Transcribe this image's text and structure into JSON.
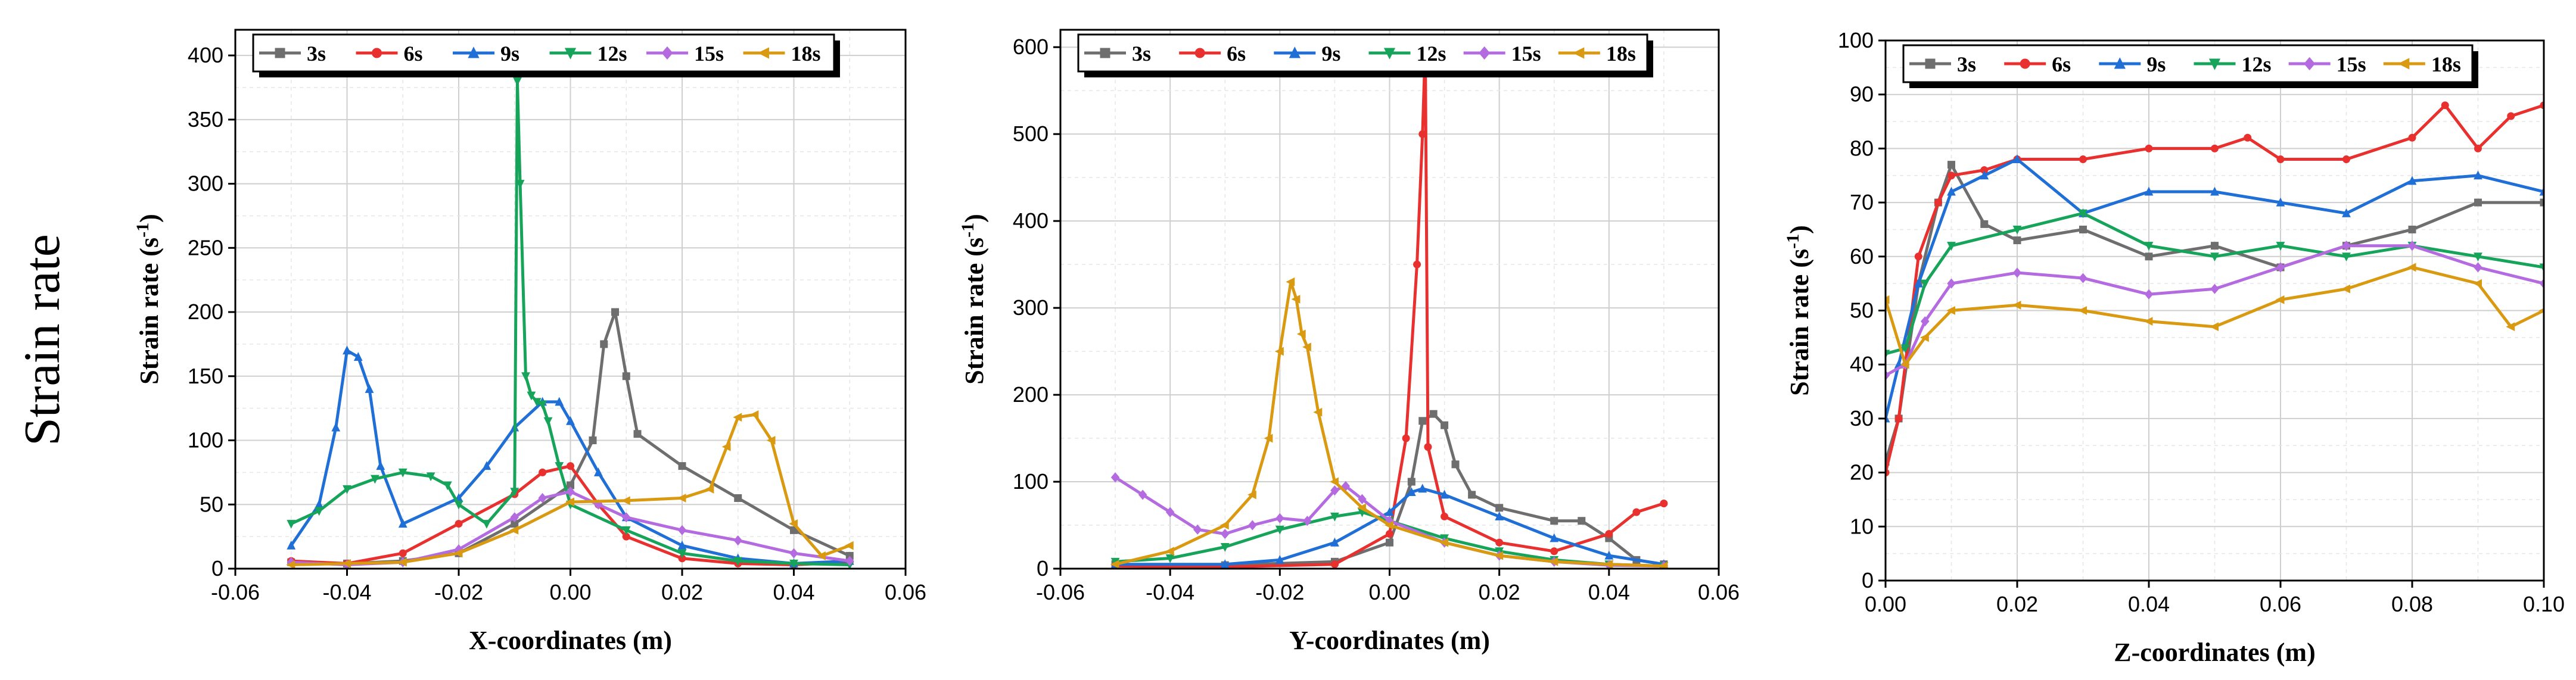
{
  "row_label": "Strain rate",
  "chart_data": [
    {
      "type": "line",
      "xlabel": "X-coordinates (m)",
      "ylabel": "Strain rate (s",
      "ylabel_sup": "-1",
      "ylabel_end": ")",
      "xlim": [
        -0.06,
        0.06
      ],
      "ylim": [
        0,
        420
      ],
      "xticks": [
        -0.06,
        -0.04,
        -0.02,
        0.0,
        0.02,
        0.04,
        0.06
      ],
      "xtick_labels": [
        "-0.06",
        "-0.04",
        "-0.02",
        "0.00",
        "0.02",
        "0.04",
        "0.06"
      ],
      "yticks": [
        0,
        50,
        100,
        150,
        200,
        250,
        300,
        350,
        400
      ],
      "ytick_labels": [
        "0",
        "50",
        "100",
        "150",
        "200",
        "250",
        "300",
        "350",
        "400"
      ],
      "grid": true,
      "legend_position": "top",
      "series": [
        {
          "name": "3s",
          "color": "#6e6e6e",
          "marker": "square",
          "x": [
            -0.05,
            -0.04,
            -0.03,
            -0.02,
            -0.01,
            0.0,
            0.004,
            0.006,
            0.008,
            0.01,
            0.012,
            0.02,
            0.03,
            0.04,
            0.05
          ],
          "y": [
            5,
            4,
            6,
            12,
            35,
            65,
            100,
            175,
            200,
            150,
            105,
            80,
            55,
            30,
            10
          ]
        },
        {
          "name": "6s",
          "color": "#e8312f",
          "marker": "circle",
          "x": [
            -0.05,
            -0.04,
            -0.03,
            -0.02,
            -0.01,
            -0.005,
            0.0,
            0.005,
            0.01,
            0.02,
            0.03,
            0.04,
            0.05
          ],
          "y": [
            6,
            4,
            12,
            35,
            58,
            75,
            80,
            50,
            25,
            8,
            4,
            3,
            5
          ]
        },
        {
          "name": "9s",
          "color": "#1f6fd6",
          "marker": "triangle-up",
          "x": [
            -0.05,
            -0.045,
            -0.042,
            -0.04,
            -0.038,
            -0.036,
            -0.034,
            -0.03,
            -0.02,
            -0.015,
            -0.01,
            -0.005,
            -0.002,
            0.0,
            0.005,
            0.01,
            0.02,
            0.03,
            0.04,
            0.05
          ],
          "y": [
            18,
            50,
            110,
            170,
            165,
            140,
            80,
            35,
            55,
            80,
            110,
            130,
            130,
            115,
            75,
            40,
            18,
            8,
            4,
            6
          ]
        },
        {
          "name": "12s",
          "color": "#16a35a",
          "marker": "triangle-down",
          "x": [
            -0.05,
            -0.045,
            -0.04,
            -0.035,
            -0.03,
            -0.025,
            -0.022,
            -0.02,
            -0.015,
            -0.01,
            -0.0095,
            -0.009,
            -0.008,
            -0.007,
            -0.006,
            -0.005,
            -0.004,
            -0.002,
            0.0,
            0.01,
            0.02,
            0.03,
            0.04,
            0.05
          ],
          "y": [
            35,
            45,
            62,
            70,
            75,
            72,
            65,
            50,
            35,
            60,
            380,
            300,
            150,
            135,
            130,
            128,
            115,
            80,
            50,
            30,
            12,
            6,
            4,
            3
          ]
        },
        {
          "name": "15s",
          "color": "#b46be0",
          "marker": "diamond",
          "x": [
            -0.05,
            -0.04,
            -0.03,
            -0.02,
            -0.01,
            -0.005,
            0.0,
            0.005,
            0.01,
            0.02,
            0.03,
            0.04,
            0.05
          ],
          "y": [
            5,
            3,
            5,
            15,
            40,
            55,
            60,
            50,
            40,
            30,
            22,
            12,
            6
          ]
        },
        {
          "name": "18s",
          "color": "#d99a12",
          "marker": "triangle-left",
          "x": [
            -0.05,
            -0.04,
            -0.03,
            -0.02,
            -0.01,
            0.0,
            0.01,
            0.02,
            0.025,
            0.028,
            0.03,
            0.033,
            0.036,
            0.04,
            0.045,
            0.05
          ],
          "y": [
            3,
            4,
            5,
            12,
            30,
            52,
            53,
            55,
            62,
            95,
            118,
            120,
            100,
            35,
            10,
            18
          ]
        }
      ]
    },
    {
      "type": "line",
      "xlabel": "Y-coordinates (m)",
      "ylabel": "Strain rate (s",
      "ylabel_sup": "-1",
      "ylabel_end": ")",
      "xlim": [
        -0.06,
        0.06
      ],
      "ylim": [
        0,
        620
      ],
      "xticks": [
        -0.06,
        -0.04,
        -0.02,
        0.0,
        0.02,
        0.04,
        0.06
      ],
      "xtick_labels": [
        "-0.06",
        "-0.04",
        "-0.02",
        "0.00",
        "0.02",
        "0.04",
        "0.06"
      ],
      "yticks": [
        0,
        100,
        200,
        300,
        400,
        500,
        600
      ],
      "ytick_labels": [
        "0",
        "100",
        "200",
        "300",
        "400",
        "500",
        "600"
      ],
      "grid": true,
      "legend_position": "top",
      "series": [
        {
          "name": "3s",
          "color": "#6e6e6e",
          "marker": "square",
          "x": [
            -0.05,
            -0.03,
            -0.01,
            0.0,
            0.004,
            0.006,
            0.008,
            0.01,
            0.012,
            0.015,
            0.02,
            0.03,
            0.035,
            0.04,
            0.045,
            0.05
          ],
          "y": [
            5,
            4,
            8,
            30,
            100,
            170,
            178,
            165,
            120,
            85,
            70,
            55,
            55,
            35,
            10,
            5
          ]
        },
        {
          "name": "6s",
          "color": "#e8312f",
          "marker": "circle",
          "x": [
            -0.05,
            -0.03,
            -0.01,
            0.0,
            0.003,
            0.005,
            0.006,
            0.0065,
            0.007,
            0.01,
            0.02,
            0.03,
            0.04,
            0.045,
            0.05
          ],
          "y": [
            3,
            2,
            5,
            40,
            150,
            350,
            500,
            600,
            140,
            60,
            30,
            20,
            40,
            65,
            75
          ]
        },
        {
          "name": "9s",
          "color": "#1f6fd6",
          "marker": "triangle-up",
          "x": [
            -0.05,
            -0.03,
            -0.02,
            -0.01,
            0.0,
            0.004,
            0.006,
            0.01,
            0.02,
            0.03,
            0.04,
            0.05
          ],
          "y": [
            5,
            5,
            10,
            30,
            65,
            88,
            92,
            85,
            60,
            35,
            15,
            5
          ]
        },
        {
          "name": "12s",
          "color": "#16a35a",
          "marker": "triangle-down",
          "x": [
            -0.05,
            -0.04,
            -0.03,
            -0.02,
            -0.01,
            -0.005,
            0.0,
            0.01,
            0.02,
            0.03,
            0.04,
            0.05
          ],
          "y": [
            8,
            12,
            25,
            45,
            60,
            65,
            55,
            35,
            20,
            10,
            5,
            3
          ]
        },
        {
          "name": "15s",
          "color": "#b46be0",
          "marker": "diamond",
          "x": [
            -0.05,
            -0.045,
            -0.04,
            -0.035,
            -0.03,
            -0.025,
            -0.02,
            -0.015,
            -0.01,
            -0.008,
            -0.005,
            0.0,
            0.01,
            0.02,
            0.03,
            0.04,
            0.05
          ],
          "y": [
            105,
            85,
            65,
            45,
            40,
            50,
            58,
            55,
            90,
            95,
            80,
            55,
            30,
            15,
            8,
            4,
            3
          ]
        },
        {
          "name": "18s",
          "color": "#d99a12",
          "marker": "triangle-left",
          "x": [
            -0.05,
            -0.04,
            -0.03,
            -0.025,
            -0.022,
            -0.02,
            -0.018,
            -0.017,
            -0.016,
            -0.015,
            -0.013,
            -0.01,
            -0.005,
            0.0,
            0.01,
            0.02,
            0.03,
            0.04,
            0.05
          ],
          "y": [
            5,
            20,
            50,
            85,
            150,
            250,
            330,
            310,
            270,
            255,
            180,
            100,
            70,
            50,
            30,
            15,
            8,
            5,
            3
          ]
        }
      ]
    },
    {
      "type": "line",
      "xlabel": "Z-coordinates (m)",
      "ylabel": "Strain rate (s",
      "ylabel_sup": "-1",
      "ylabel_end": ")",
      "xlim": [
        0.0,
        0.1
      ],
      "ylim": [
        0,
        100
      ],
      "xticks": [
        0.0,
        0.02,
        0.04,
        0.06,
        0.08,
        0.1
      ],
      "xtick_labels": [
        "0.00",
        "0.02",
        "0.04",
        "0.06",
        "0.08",
        "0.10"
      ],
      "yticks": [
        0,
        10,
        20,
        30,
        40,
        50,
        60,
        70,
        80,
        90,
        100
      ],
      "ytick_labels": [
        "0",
        "10",
        "20",
        "30",
        "40",
        "50",
        "60",
        "70",
        "80",
        "90",
        "100"
      ],
      "grid": true,
      "legend_position": "top",
      "series": [
        {
          "name": "3s",
          "color": "#6e6e6e",
          "marker": "square",
          "x": [
            0.0,
            0.002,
            0.005,
            0.008,
            0.01,
            0.015,
            0.02,
            0.03,
            0.04,
            0.05,
            0.06,
            0.07,
            0.08,
            0.09,
            0.1
          ],
          "y": [
            22,
            30,
            55,
            70,
            77,
            66,
            63,
            65,
            60,
            62,
            58,
            62,
            65,
            70,
            70
          ]
        },
        {
          "name": "6s",
          "color": "#e8312f",
          "marker": "circle",
          "x": [
            0.0,
            0.002,
            0.005,
            0.008,
            0.01,
            0.015,
            0.02,
            0.03,
            0.04,
            0.05,
            0.055,
            0.06,
            0.07,
            0.08,
            0.085,
            0.09,
            0.095,
            0.1
          ],
          "y": [
            20,
            30,
            60,
            70,
            75,
            76,
            78,
            78,
            80,
            80,
            82,
            78,
            78,
            82,
            88,
            80,
            86,
            88
          ]
        },
        {
          "name": "9s",
          "color": "#1f6fd6",
          "marker": "triangle-up",
          "x": [
            0.0,
            0.002,
            0.005,
            0.01,
            0.015,
            0.02,
            0.03,
            0.04,
            0.05,
            0.06,
            0.07,
            0.08,
            0.09,
            0.1
          ],
          "y": [
            30,
            40,
            55,
            72,
            75,
            78,
            68,
            72,
            72,
            70,
            68,
            74,
            75,
            72
          ]
        },
        {
          "name": "12s",
          "color": "#16a35a",
          "marker": "triangle-down",
          "x": [
            0.0,
            0.003,
            0.006,
            0.01,
            0.02,
            0.03,
            0.04,
            0.05,
            0.06,
            0.07,
            0.08,
            0.09,
            0.1
          ],
          "y": [
            42,
            43,
            55,
            62,
            65,
            68,
            62,
            60,
            62,
            60,
            62,
            60,
            58
          ]
        },
        {
          "name": "15s",
          "color": "#b46be0",
          "marker": "diamond",
          "x": [
            0.0,
            0.003,
            0.006,
            0.01,
            0.02,
            0.03,
            0.04,
            0.05,
            0.06,
            0.07,
            0.08,
            0.09,
            0.1
          ],
          "y": [
            38,
            40,
            48,
            55,
            57,
            56,
            53,
            54,
            58,
            62,
            62,
            58,
            55
          ]
        },
        {
          "name": "18s",
          "color": "#d99a12",
          "marker": "triangle-left",
          "x": [
            0.0,
            0.003,
            0.006,
            0.01,
            0.02,
            0.03,
            0.04,
            0.05,
            0.06,
            0.07,
            0.08,
            0.09,
            0.095,
            0.1
          ],
          "y": [
            52,
            40,
            45,
            50,
            51,
            50,
            48,
            47,
            52,
            54,
            58,
            55,
            47,
            50
          ]
        }
      ]
    }
  ]
}
